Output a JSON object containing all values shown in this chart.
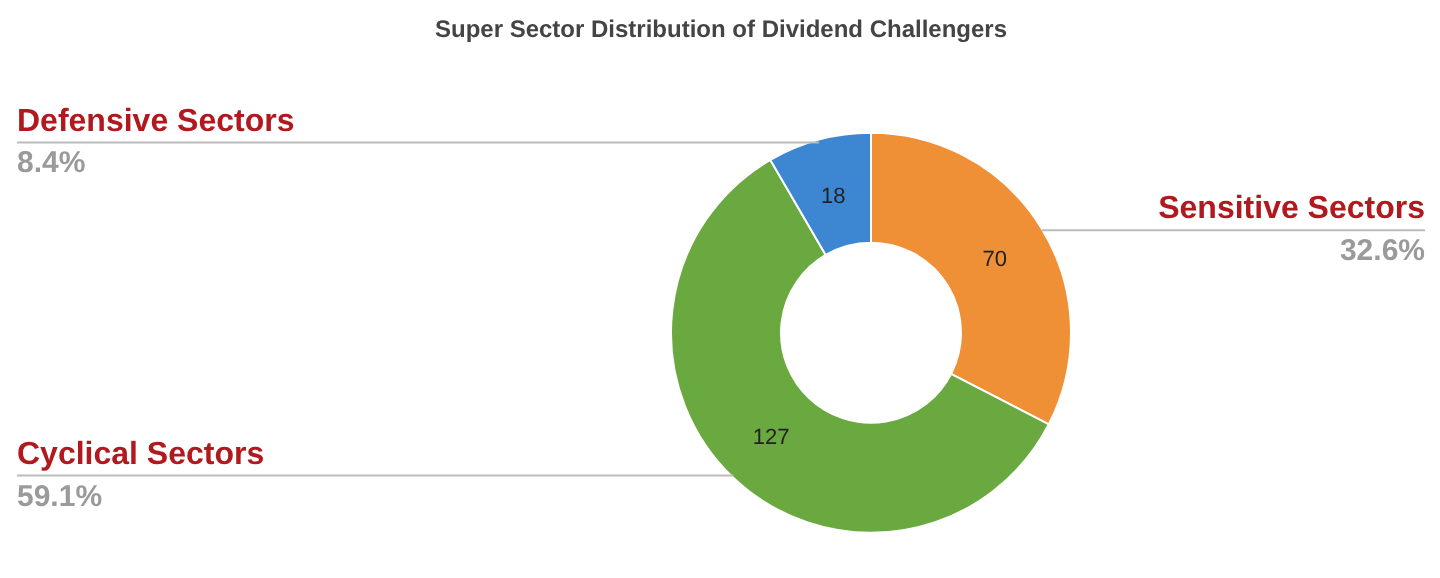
{
  "chart_data": {
    "type": "donut",
    "title": "Super Sector Distribution of Dividend Challengers",
    "categories": [
      "Sensitive Sectors",
      "Cyclical Sectors",
      "Defensive Sectors"
    ],
    "values": [
      32.6,
      59.1,
      8.4
    ],
    "colors": [
      "#ef8f36",
      "#69a940",
      "#3d87d2"
    ],
    "value_labels": [
      "32.6%",
      "59.1%",
      "8.4%"
    ],
    "annotations": [
      {
        "text": "70",
        "x": "Sensitive Sectors"
      },
      {
        "text": "127",
        "x": "Cyclical Sectors"
      },
      {
        "text": "18",
        "x": "Defensive Sectors"
      }
    ]
  }
}
